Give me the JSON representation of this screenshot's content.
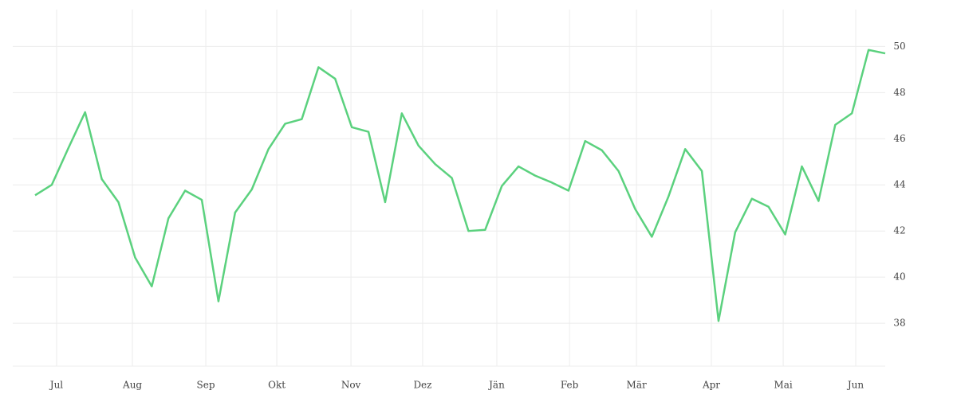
{
  "chart_data": {
    "type": "line",
    "x": [
      0,
      1,
      2,
      3,
      4,
      5,
      6,
      7,
      8,
      9,
      10,
      11,
      12,
      13,
      14,
      15,
      16,
      17,
      18,
      19,
      20,
      21,
      22,
      23,
      24,
      25,
      26,
      27,
      28,
      29,
      30,
      31,
      32,
      33,
      34,
      35,
      36,
      37,
      38,
      39,
      40,
      41,
      42,
      43,
      44,
      45,
      46,
      47,
      48,
      49,
      50,
      51
    ],
    "series": [
      {
        "color": "#5bd17e",
        "values": [
          43.55,
          44.0,
          45.6,
          47.15,
          44.25,
          43.25,
          40.85,
          39.6,
          42.55,
          43.75,
          43.35,
          38.95,
          42.8,
          43.8,
          45.55,
          46.65,
          46.85,
          49.1,
          48.6,
          46.5,
          46.3,
          43.25,
          47.1,
          45.7,
          44.9,
          44.3,
          42.0,
          42.05,
          43.95,
          44.8,
          44.4,
          44.1,
          43.75,
          45.9,
          45.5,
          44.6,
          42.95,
          41.75,
          43.5,
          45.55,
          44.6,
          38.1,
          41.95,
          43.4,
          43.05,
          41.85,
          44.8,
          43.3,
          46.6,
          47.1,
          49.85,
          49.7
        ]
      }
    ],
    "xlim": [
      -1.34,
      51
    ],
    "xticks": [
      {
        "value": 1.29,
        "label": "Jul"
      },
      {
        "value": 5.84,
        "label": "Aug"
      },
      {
        "value": 10.24,
        "label": "Sep"
      },
      {
        "value": 14.5,
        "label": "Okt"
      },
      {
        "value": 18.95,
        "label": "Nov"
      },
      {
        "value": 23.25,
        "label": "Dez"
      },
      {
        "value": 27.7,
        "label": "Jän"
      },
      {
        "value": 32.06,
        "label": "Feb"
      },
      {
        "value": 36.08,
        "label": "Mär"
      },
      {
        "value": 40.57,
        "label": "Apr"
      },
      {
        "value": 44.88,
        "label": "Mai"
      },
      {
        "value": 49.23,
        "label": "Jun"
      }
    ],
    "ylim": [
      36.14,
      51.6
    ],
    "yticks": [
      38,
      40,
      42,
      44,
      46,
      48,
      50
    ],
    "grid": true
  }
}
